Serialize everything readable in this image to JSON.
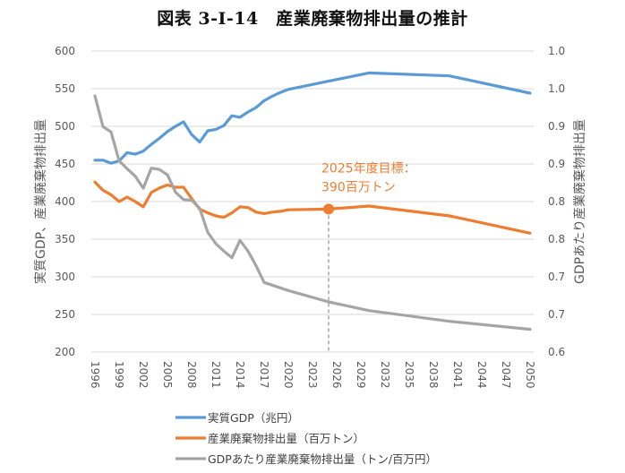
{
  "chart_data": {
    "type": "line",
    "title": "図表 3-I-14　産業廃棄物排出量の推計",
    "xlabel": "",
    "ylabel_left": "実質GDP、産業廃棄物排出量",
    "ylabel_right": "GDPあたり産業廃棄物排出量",
    "ylim_left": [
      200,
      600
    ],
    "ylim_right": [
      0.6,
      1.05
    ],
    "yticks_left": [
      "200",
      "250",
      "300",
      "350",
      "400",
      "450",
      "500",
      "550",
      "600"
    ],
    "yticks_right": [
      "0.6",
      "0.7",
      "0.7",
      "0.8",
      "0.8",
      "0.9",
      "0.9",
      "1.0",
      "1.0"
    ],
    "xticks": [
      "1996",
      "1999",
      "2002",
      "2005",
      "2008",
      "2011",
      "2014",
      "2017",
      "2020",
      "2023",
      "2026",
      "2029",
      "2032",
      "2035",
      "2038",
      "2041",
      "2044",
      "2047",
      "2050"
    ],
    "xlim": [
      1996,
      2050
    ],
    "grid": true,
    "legend_position": "bottom",
    "series": [
      {
        "name": "実質GDP（兆円）",
        "axis": "left",
        "color": "#5B9BD5",
        "x": [
          1996,
          1997,
          1998,
          1999,
          2000,
          2001,
          2002,
          2003,
          2004,
          2005,
          2006,
          2007,
          2008,
          2009,
          2010,
          2011,
          2012,
          2013,
          2014,
          2015,
          2016,
          2017,
          2018,
          2019,
          2020,
          2025,
          2030,
          2040,
          2050
        ],
        "values": [
          455,
          455,
          451,
          454,
          465,
          463,
          467,
          476,
          484,
          493,
          500,
          506,
          489,
          479,
          494,
          496,
          501,
          514,
          512,
          519,
          525,
          534,
          540,
          545,
          549,
          560,
          571,
          567,
          544
        ]
      },
      {
        "name": "産業廃棄物排出量（百万トン）",
        "axis": "left",
        "color": "#ED7D31",
        "x": [
          1996,
          1997,
          1998,
          1999,
          2000,
          2001,
          2002,
          2003,
          2004,
          2005,
          2006,
          2007,
          2008,
          2009,
          2010,
          2011,
          2012,
          2013,
          2014,
          2015,
          2016,
          2017,
          2018,
          2019,
          2020,
          2025,
          2030,
          2040,
          2050
        ],
        "values": [
          426,
          415,
          409,
          400,
          406,
          400,
          393,
          412,
          418,
          422,
          419,
          419,
          404,
          390,
          385,
          381,
          379,
          385,
          393,
          392,
          386,
          384,
          386,
          387,
          389,
          390,
          394,
          381,
          358
        ]
      },
      {
        "name": "GDPあたり産業廃棄物排出量（トン/百万円）",
        "axis": "right",
        "color": "#A5A5A5",
        "x": [
          1996,
          1997,
          1998,
          1999,
          2000,
          2001,
          2002,
          2003,
          2004,
          2005,
          2006,
          2007,
          2008,
          2009,
          2010,
          2011,
          2012,
          2013,
          2014,
          2015,
          2016,
          2017,
          2018,
          2019,
          2020,
          2025,
          2030,
          2040,
          2050
        ],
        "values": [
          0.983,
          0.937,
          0.929,
          0.886,
          0.874,
          0.863,
          0.845,
          0.875,
          0.873,
          0.865,
          0.839,
          0.828,
          0.827,
          0.815,
          0.779,
          0.762,
          0.751,
          0.741,
          0.767,
          0.751,
          0.729,
          0.704,
          0.7,
          0.696,
          0.692,
          0.675,
          0.662,
          0.646,
          0.634
        ]
      }
    ],
    "annotations": [
      {
        "text_line1": "2025年度目標：",
        "text_line2": "390百万トン",
        "x": 2025,
        "y": 390,
        "axis": "left",
        "color": "#ED7D31"
      }
    ]
  }
}
